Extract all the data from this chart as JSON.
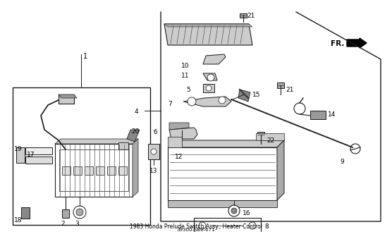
{
  "bg_color": "#ffffff",
  "line_color": "#000000",
  "title": "1983 Honda Prelude Switch Assy., Heater Control",
  "part_number": "39300-SB0-671"
}
